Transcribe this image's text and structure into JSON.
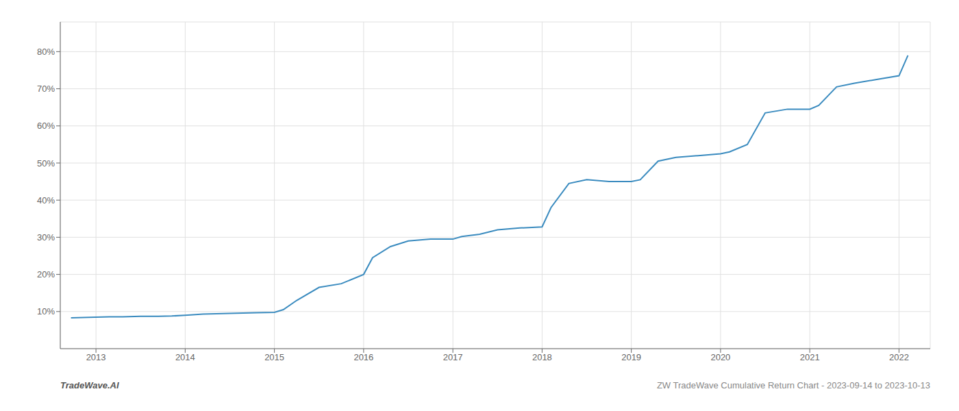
{
  "chart_data": {
    "type": "line",
    "annotations": [
      "TradeWave.AI",
      "ZW TradeWave Cumulative Return Chart - 2023-09-14 to 2023-10-13"
    ],
    "x": [
      2012.72,
      2013.0,
      2013.15,
      2013.3,
      2013.5,
      2013.7,
      2013.85,
      2014.0,
      2014.2,
      2014.5,
      2014.8,
      2015.0,
      2015.1,
      2015.25,
      2015.5,
      2015.75,
      2016.0,
      2016.1,
      2016.3,
      2016.5,
      2016.75,
      2017.0,
      2017.1,
      2017.3,
      2017.5,
      2017.75,
      2018.0,
      2018.1,
      2018.3,
      2018.5,
      2018.75,
      2019.0,
      2019.1,
      2019.3,
      2019.5,
      2019.75,
      2020.0,
      2020.1,
      2020.3,
      2020.5,
      2020.75,
      2021.0,
      2021.1,
      2021.3,
      2021.5,
      2021.75,
      2022.0,
      2022.1
    ],
    "values": [
      8.3,
      8.5,
      8.6,
      8.6,
      8.7,
      8.7,
      8.8,
      9.0,
      9.3,
      9.5,
      9.7,
      9.8,
      10.5,
      13.0,
      16.5,
      17.5,
      20.0,
      24.5,
      27.5,
      29.0,
      29.5,
      29.5,
      30.2,
      30.8,
      32.0,
      32.5,
      32.8,
      38.0,
      44.5,
      45.5,
      45.0,
      45.0,
      45.5,
      50.5,
      51.5,
      52.0,
      52.5,
      53.0,
      55.0,
      63.5,
      64.5,
      64.5,
      65.5,
      70.5,
      71.5,
      72.5,
      73.5,
      79.0
    ],
    "color": "#3a8bbf",
    "xlim": [
      2012.6,
      2022.35
    ],
    "xticks": [
      2013,
      2014,
      2015,
      2016,
      2017,
      2018,
      2019,
      2020,
      2021,
      2022
    ],
    "ylim": [
      0,
      88
    ],
    "yticks": [
      {
        "value": 10,
        "label": "10%"
      },
      {
        "value": 20,
        "label": "20%"
      },
      {
        "value": 30,
        "label": "30%"
      },
      {
        "value": 40,
        "label": "40%"
      },
      {
        "value": 50,
        "label": "50%"
      },
      {
        "value": 60,
        "label": "60%"
      },
      {
        "value": 70,
        "label": "70%"
      },
      {
        "value": 80,
        "label": "80%"
      }
    ],
    "grid": true
  }
}
